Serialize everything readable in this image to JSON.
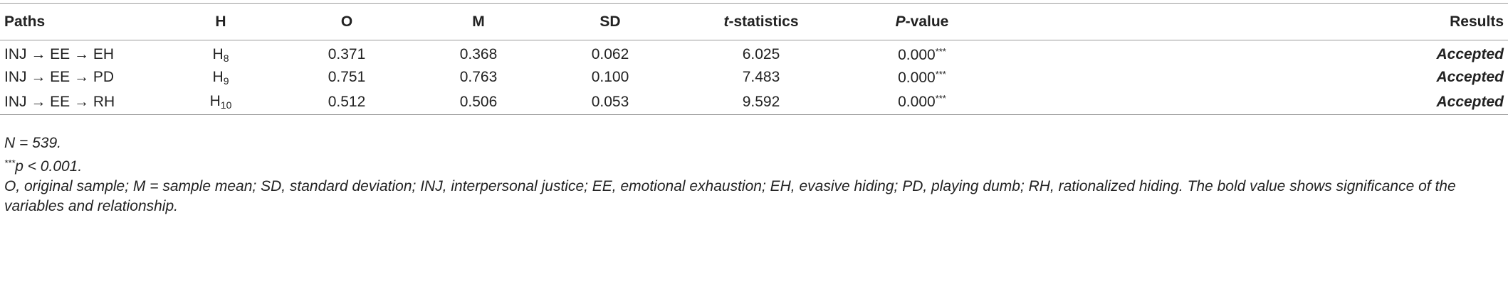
{
  "table": {
    "header": [
      "Paths",
      "H",
      "O",
      "M",
      "SD",
      [
        "t",
        "-statistics"
      ],
      [
        "P",
        "-value"
      ],
      "Results"
    ],
    "rows": [
      [
        "INJ → EE → EH",
        [
          "H",
          "8"
        ],
        "0.371",
        "0.368",
        "0.062",
        "6.025",
        [
          "0.000",
          "***"
        ],
        "Accepted"
      ],
      [
        "INJ → EE → PD",
        [
          "H",
          "9"
        ],
        "0.751",
        "0.763",
        "0.100",
        "7.483",
        [
          "0.000",
          "***"
        ],
        "Accepted"
      ],
      [
        "INJ → EE → RH",
        [
          "H",
          "10"
        ],
        "0.512",
        "0.506",
        "0.053",
        "9.592",
        [
          "0.000",
          "***"
        ],
        "Accepted"
      ]
    ]
  },
  "notes": [
    "N = 539.",
    [
      "***",
      "p < 0.001."
    ],
    "O, original sample; M = sample mean; SD, standard deviation; INJ, interpersonal justice; EE, emotional exhaustion; EH, evasive hiding; PD, playing dumb; RH, rationalized hiding. The bold value shows significance of the variables and relationship."
  ]
}
